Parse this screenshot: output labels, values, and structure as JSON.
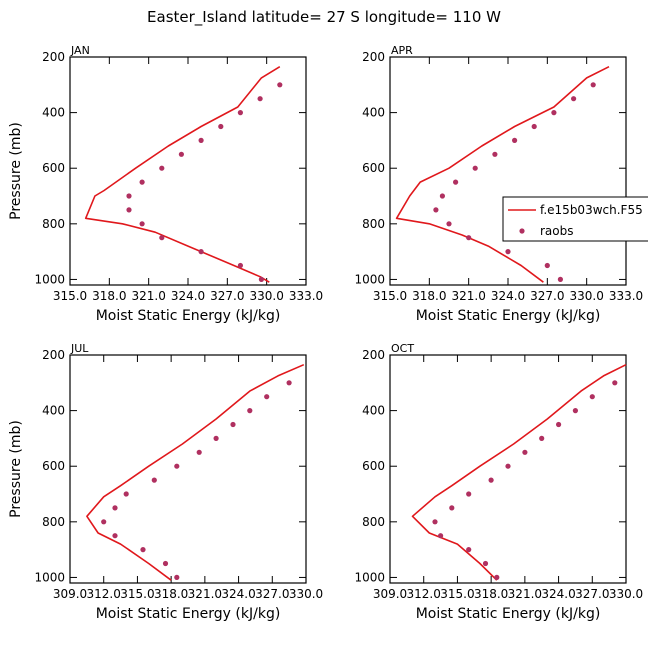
{
  "title": "Easter_Island  latitude= 27 S longitude= 110 W",
  "legend": {
    "model_label": "f.e15b03wch.F55",
    "obs_label": "raobs"
  },
  "colors": {
    "model": "#e0181c",
    "obs": "#b03060",
    "axis": "#000000"
  },
  "chart_data": [
    {
      "type": "line",
      "panel": "JAN",
      "xlabel": "Moist Static Energy (kJ/kg)",
      "ylabel": "Pressure (mb)",
      "xlim": [
        315.0,
        333.0
      ],
      "ylim": [
        1020,
        200
      ],
      "xticks": [
        315.0,
        318.0,
        321.0,
        324.0,
        327.0,
        330.0,
        333.0
      ],
      "xtick_labels": [
        "315.0",
        "318.0",
        "321.0",
        "324.0",
        "327.0",
        "330.0",
        "333.0"
      ],
      "yticks": [
        200,
        400,
        600,
        800,
        1000
      ],
      "series": [
        {
          "name": "f.e15b03wch.F55",
          "style": "line",
          "x": [
            331.0,
            329.6,
            327.8,
            325.0,
            322.5,
            320.0,
            317.6,
            316.9,
            316.2,
            319.0,
            321.5,
            324.0,
            327.5,
            329.5,
            330.2
          ],
          "y": [
            235,
            275,
            380,
            450,
            520,
            600,
            680,
            700,
            780,
            800,
            830,
            880,
            950,
            990,
            1010
          ]
        },
        {
          "name": "raobs",
          "style": "markers",
          "x": [
            331.0,
            329.5,
            328.0,
            326.5,
            325.0,
            323.5,
            322.0,
            320.5,
            319.5,
            319.5,
            320.5,
            322.0,
            325.0,
            328.0,
            329.6
          ],
          "y": [
            300,
            350,
            400,
            450,
            500,
            550,
            600,
            650,
            700,
            750,
            800,
            850,
            900,
            950,
            1000
          ]
        }
      ]
    },
    {
      "type": "line",
      "panel": "APR",
      "xlabel": "Moist Static Energy (kJ/kg)",
      "ylabel": "",
      "xlim": [
        315.0,
        333.0
      ],
      "ylim": [
        1020,
        200
      ],
      "xticks": [
        315.0,
        318.0,
        321.0,
        324.0,
        327.0,
        330.0,
        333.0
      ],
      "xtick_labels": [
        "315.0",
        "318.0",
        "321.0",
        "324.0",
        "327.0",
        "330.0",
        "333.0"
      ],
      "yticks": [
        200,
        400,
        600,
        800,
        1000
      ],
      "series": [
        {
          "name": "f.e15b03wch.F55",
          "style": "line",
          "x": [
            331.7,
            330.0,
            327.5,
            324.5,
            322.0,
            319.5,
            317.3,
            316.5,
            315.5,
            318.0,
            320.5,
            322.5,
            325.0,
            326.7
          ],
          "y": [
            235,
            275,
            380,
            450,
            520,
            600,
            650,
            700,
            780,
            800,
            840,
            880,
            950,
            1010
          ]
        },
        {
          "name": "raobs",
          "style": "markers",
          "x": [
            330.5,
            329.0,
            327.5,
            326.0,
            324.5,
            323.0,
            321.5,
            320.0,
            319.0,
            318.5,
            319.5,
            321.0,
            324.0,
            327.0,
            328.0
          ],
          "y": [
            300,
            350,
            400,
            450,
            500,
            550,
            600,
            650,
            700,
            750,
            800,
            850,
            900,
            950,
            1000
          ]
        }
      ]
    },
    {
      "type": "line",
      "panel": "JUL",
      "xlabel": "Moist Static Energy (kJ/kg)",
      "ylabel": "Pressure (mb)",
      "xlim": [
        309.0,
        330.0
      ],
      "ylim": [
        1020,
        200
      ],
      "xticks": [
        309.0,
        312.0,
        315.0,
        318.0,
        321.0,
        324.0,
        327.0,
        330.0
      ],
      "xtick_labels": [
        "309.0",
        "312.0",
        "315.0",
        "318.0",
        "321.0",
        "324.0",
        "327.0",
        "330.0"
      ],
      "yticks": [
        200,
        400,
        600,
        800,
        1000
      ],
      "series": [
        {
          "name": "f.e15b03wch.F55",
          "style": "line",
          "x": [
            329.8,
            327.5,
            325.0,
            322.0,
            319.0,
            316.0,
            313.5,
            312.0,
            310.5,
            311.5,
            313.5,
            316.0,
            318.0
          ],
          "y": [
            235,
            275,
            330,
            430,
            520,
            600,
            670,
            710,
            780,
            840,
            880,
            950,
            1010
          ]
        },
        {
          "name": "raobs",
          "style": "markers",
          "x": [
            328.5,
            326.5,
            325.0,
            323.5,
            322.0,
            320.5,
            318.5,
            316.5,
            314.0,
            313.0,
            312.0,
            313.0,
            315.5,
            317.5,
            318.5
          ],
          "y": [
            300,
            350,
            400,
            450,
            500,
            550,
            600,
            650,
            700,
            750,
            800,
            850,
            900,
            950,
            1000
          ]
        }
      ]
    },
    {
      "type": "line",
      "panel": "OCT",
      "xlabel": "Moist Static Energy (kJ/kg)",
      "ylabel": "",
      "xlim": [
        309.0,
        330.0
      ],
      "ylim": [
        1020,
        200
      ],
      "xticks": [
        309.0,
        312.0,
        315.0,
        318.0,
        321.0,
        324.0,
        327.0,
        330.0
      ],
      "xtick_labels": [
        "309.0",
        "312.0",
        "315.0",
        "318.0",
        "321.0",
        "324.0",
        "327.0",
        "330.0"
      ],
      "yticks": [
        200,
        400,
        600,
        800,
        1000
      ],
      "series": [
        {
          "name": "f.e15b03wch.F55",
          "style": "line",
          "x": [
            330.0,
            328.0,
            326.0,
            323.0,
            320.0,
            317.0,
            314.5,
            313.0,
            311.0,
            312.5,
            315.0,
            317.0,
            318.5
          ],
          "y": [
            235,
            275,
            330,
            430,
            520,
            600,
            670,
            710,
            780,
            840,
            880,
            950,
            1010
          ]
        },
        {
          "name": "raobs",
          "style": "markers",
          "x": [
            329.0,
            327.0,
            325.5,
            324.0,
            322.5,
            321.0,
            319.5,
            318.0,
            316.0,
            314.5,
            313.0,
            313.5,
            316.0,
            317.5,
            318.5
          ],
          "y": [
            300,
            350,
            400,
            450,
            500,
            550,
            600,
            650,
            700,
            750,
            800,
            850,
            900,
            950,
            1000
          ]
        }
      ]
    }
  ]
}
